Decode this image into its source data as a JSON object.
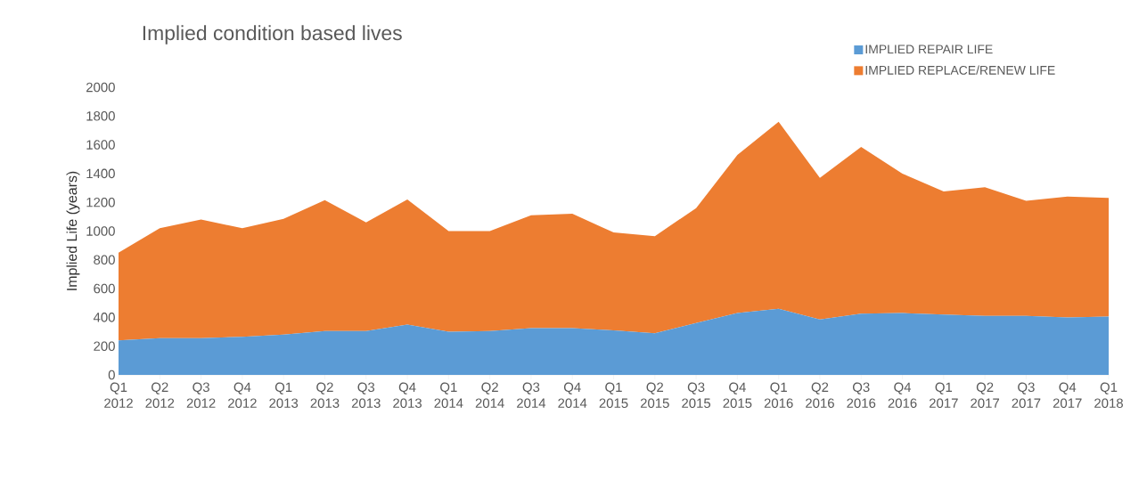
{
  "chart_data": {
    "type": "area",
    "title": "Implied condition based lives",
    "ylabel": "Implied Life (years)",
    "categories": [
      "Q1 2012",
      "Q2 2012",
      "Q3 2012",
      "Q4 2012",
      "Q1 2013",
      "Q2 2013",
      "Q3 2013",
      "Q4 2013",
      "Q1 2014",
      "Q2 2014",
      "Q3 2014",
      "Q4 2014",
      "Q1 2015",
      "Q2 2015",
      "Q3 2015",
      "Q4 2015",
      "Q1 2016",
      "Q2 2016",
      "Q3 2016",
      "Q4 2016",
      "Q1 2017",
      "Q2 2017",
      "Q3 2017",
      "Q4 2017",
      "Q1 2018"
    ],
    "stacked": true,
    "series": [
      {
        "name": "IMPLIED REPAIR LIFE",
        "color": "#5b9bd5",
        "values": [
          240,
          255,
          255,
          265,
          280,
          305,
          305,
          350,
          300,
          305,
          325,
          325,
          310,
          290,
          360,
          430,
          460,
          385,
          425,
          430,
          420,
          410,
          410,
          400,
          405
        ]
      },
      {
        "name": "IMPLIED REPLACE/RENEW LIFE",
        "color": "#ed7d31",
        "values": [
          610,
          765,
          825,
          755,
          805,
          910,
          755,
          870,
          700,
          695,
          785,
          795,
          680,
          675,
          800,
          1100,
          1300,
          985,
          1160,
          970,
          855,
          895,
          800,
          840,
          825
        ]
      }
    ],
    "ylim": [
      0,
      2000
    ],
    "yticks": [
      0,
      200,
      400,
      600,
      800,
      1000,
      1200,
      1400,
      1600,
      1800,
      2000
    ],
    "grid": false,
    "legend": "top right"
  }
}
